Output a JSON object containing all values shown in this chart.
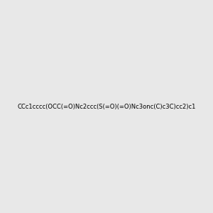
{
  "smiles": "CCc1cccc(OCC(=O)Nc2ccc(S(=O)(=O)Nc3onc(C)c3C)cc2)c1",
  "bg_color": "#e8e8e8",
  "fig_size": [
    3.0,
    3.0
  ],
  "dpi": 100
}
